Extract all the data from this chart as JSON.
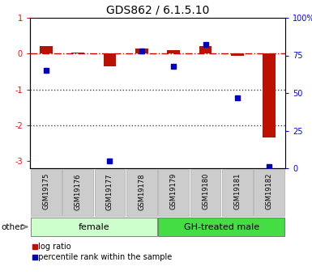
{
  "title": "GDS862 / 6.1.5.10",
  "samples": [
    "GSM19175",
    "GSM19176",
    "GSM19177",
    "GSM19178",
    "GSM19179",
    "GSM19180",
    "GSM19181",
    "GSM19182"
  ],
  "log_ratio": [
    0.2,
    0.02,
    -0.35,
    0.15,
    0.1,
    0.22,
    -0.05,
    -2.35
  ],
  "percentile_rank": [
    65,
    null,
    5,
    78,
    68,
    82,
    47,
    1
  ],
  "groups": [
    {
      "label": "female",
      "start": 0,
      "end": 3,
      "color": "#ccffcc"
    },
    {
      "label": "GH-treated male",
      "start": 4,
      "end": 7,
      "color": "#44dd44"
    }
  ],
  "ylim_left": [
    -3.2,
    1.0
  ],
  "ylim_right": [
    0,
    100
  ],
  "bar_color": "#bb1100",
  "square_color": "#0000bb",
  "hline_color": "#cc0000",
  "dotline_color": "#444444",
  "sample_box_color": "#cccccc",
  "sample_box_edge": "#aaaaaa"
}
